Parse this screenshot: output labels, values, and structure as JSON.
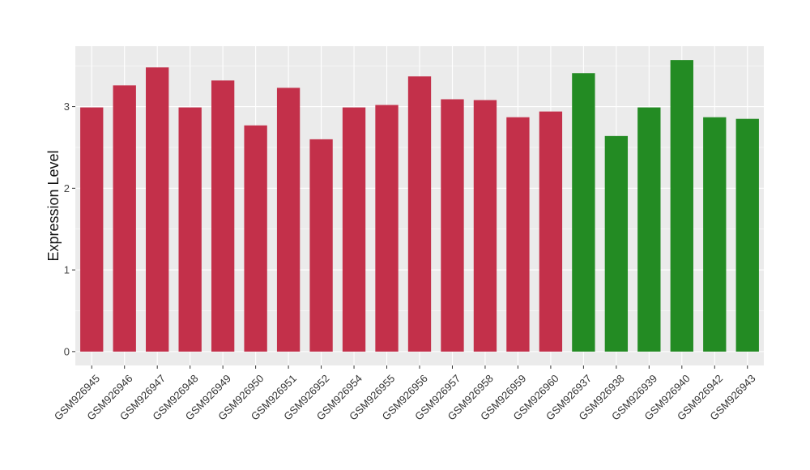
{
  "chart_data": {
    "type": "bar",
    "title": "",
    "xlabel": "",
    "ylabel": "Expression Level",
    "ylim": [
      -0.17,
      3.74
    ],
    "yticks": [
      0,
      1,
      2,
      3
    ],
    "grid": true,
    "legend": "none",
    "colors": {
      "group_a": "#C3304A",
      "group_b": "#238B23",
      "panel_bg": "#EBEBEB",
      "grid": "#FFFFFF"
    },
    "categories": [
      "GSM926945",
      "GSM926946",
      "GSM926947",
      "GSM926948",
      "GSM926949",
      "GSM926950",
      "GSM926951",
      "GSM926952",
      "GSM926954",
      "GSM926955",
      "GSM926956",
      "GSM926957",
      "GSM926958",
      "GSM926959",
      "GSM926960",
      "GSM926937",
      "GSM926938",
      "GSM926939",
      "GSM926940",
      "GSM926942",
      "GSM926943"
    ],
    "values": [
      2.99,
      3.26,
      3.48,
      2.99,
      3.32,
      2.77,
      3.23,
      2.6,
      2.99,
      3.02,
      3.37,
      3.09,
      3.08,
      2.87,
      2.94,
      3.41,
      2.64,
      2.99,
      3.57,
      2.87,
      2.85
    ],
    "groups": [
      "a",
      "a",
      "a",
      "a",
      "a",
      "a",
      "a",
      "a",
      "a",
      "a",
      "a",
      "a",
      "a",
      "a",
      "a",
      "b",
      "b",
      "b",
      "b",
      "b",
      "b"
    ]
  }
}
